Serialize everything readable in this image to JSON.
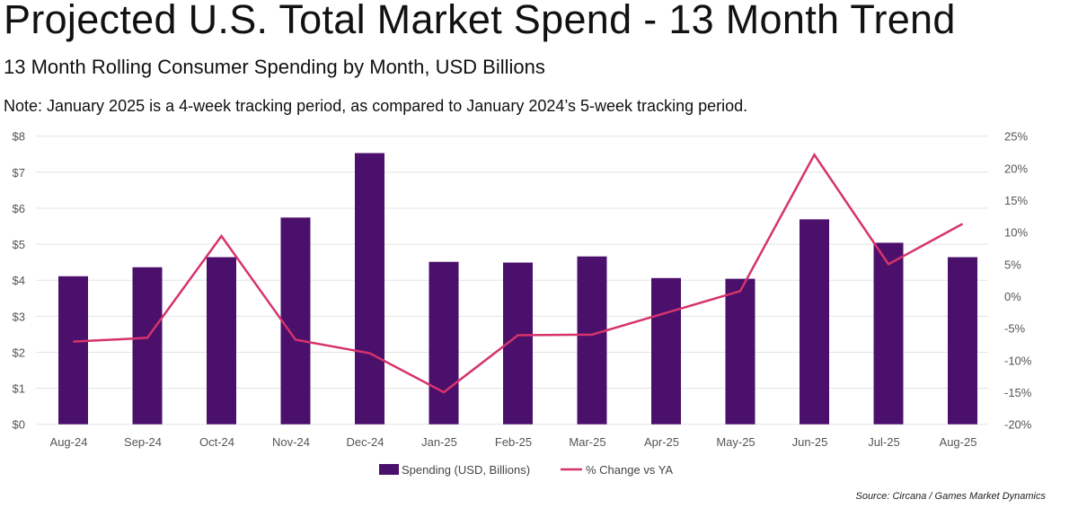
{
  "title": "Projected U.S. Total Market Spend - 13 Month Trend",
  "subtitle": "13 Month Rolling Consumer Spending by Month, USD Billions",
  "note": "Note: January 2025 is a 4-week tracking period, as compared to January 2024’s 5-week tracking period.",
  "source": "Source: Circana / Games Market Dynamics",
  "chart_data": {
    "type": "bar+line",
    "categories": [
      "Aug-24",
      "Sep-24",
      "Oct-24",
      "Nov-24",
      "Dec-24",
      "Jan-25",
      "Feb-25",
      "Mar-25",
      "Apr-25",
      "May-25",
      "Jun-25",
      "Jul-25",
      "Aug-25"
    ],
    "series": [
      {
        "name": "Spending (USD, Billions)",
        "type": "bar",
        "axis": "left",
        "color": "#4b106b",
        "values": [
          4.11,
          4.36,
          4.64,
          5.74,
          7.53,
          4.51,
          4.49,
          4.66,
          4.06,
          4.04,
          5.69,
          5.04,
          4.64
        ]
      },
      {
        "name": "% Change vs YA",
        "type": "line",
        "axis": "right",
        "color": "#d6336c",
        "values": [
          -7.1,
          -6.5,
          9.4,
          -6.8,
          -8.9,
          -15.0,
          -6.1,
          -6.0,
          -2.6,
          0.8,
          22.1,
          5.0,
          11.3
        ]
      }
    ],
    "y_left": {
      "range": [
        0,
        8
      ],
      "ticks": [
        "$0",
        "$1",
        "$2",
        "$3",
        "$4",
        "$5",
        "$6",
        "$7",
        "$8"
      ]
    },
    "y_right": {
      "range": [
        -20,
        25
      ],
      "ticks": [
        "-20%",
        "-15%",
        "-10%",
        "-5%",
        "0%",
        "5%",
        "10%",
        "15%",
        "20%",
        "25%"
      ]
    },
    "grid": true,
    "legend": "bottom"
  }
}
